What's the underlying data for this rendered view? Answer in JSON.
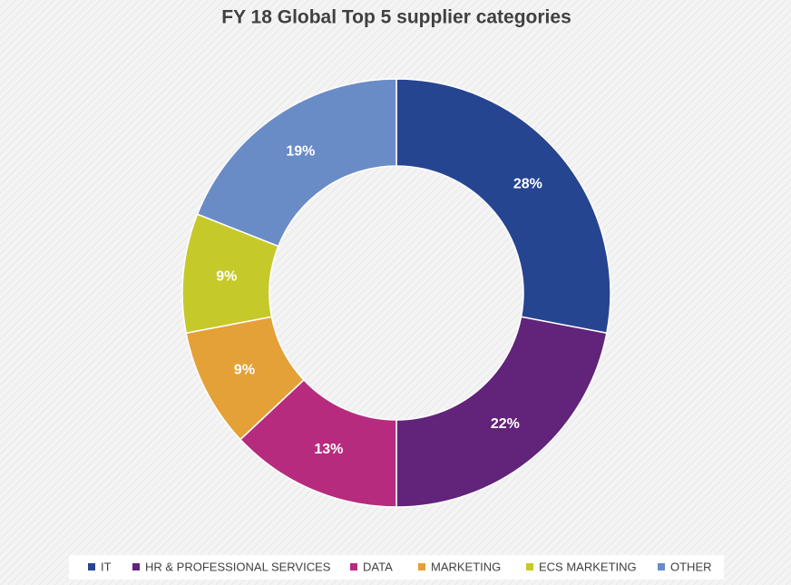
{
  "chart_data": {
    "type": "donut",
    "title": "FY 18 Global Top 5 supplier categories",
    "categories": [
      "IT",
      "HR & PROFESSIONAL SERVICES",
      "DATA",
      "MARKETING",
      "ECS MARKETING",
      "OTHER"
    ],
    "values": [
      28,
      22,
      13,
      9,
      9,
      19
    ],
    "value_labels": [
      "28%",
      "22%",
      "13%",
      "9%",
      "9%",
      "19%"
    ],
    "colors": [
      "#264591",
      "#62237a",
      "#b72b7f",
      "#e4a137",
      "#c6c92a",
      "#6a8cc6"
    ],
    "legend": "bottom"
  }
}
